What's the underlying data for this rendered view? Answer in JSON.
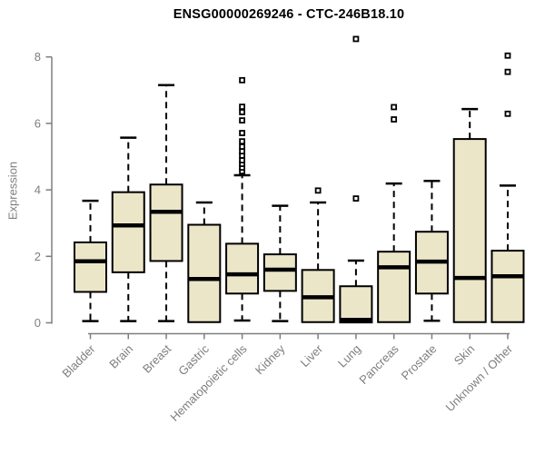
{
  "figure": {
    "title": "ENSG00000269246 - CTC-246B18.10",
    "ylabel": "Expression"
  },
  "colors": {
    "background": "#FFFFFF",
    "box_fill": "#ECE6C9",
    "box_stroke": "#000000",
    "median": "#000000",
    "whisker": "#000000",
    "outlier_stroke": "#000000",
    "axis": "#7E7E7E",
    "title_text": "#000000"
  },
  "chart_data": {
    "type": "boxplot",
    "title": "ENSG00000269246 - CTC-246B18.10",
    "xlabel": "",
    "ylabel": "Expression",
    "ylim": [
      0,
      8.6
    ],
    "yticks": [
      0,
      2,
      4,
      6,
      8
    ],
    "grid": false,
    "legend": false,
    "categories": [
      "Bladder",
      "Brain",
      "Breast",
      "Gastric",
      "Hematopoietic cells",
      "Kidney",
      "Liver",
      "Lung",
      "Pancreas",
      "Prostate",
      "Skin",
      "Unknown / Other"
    ],
    "boxes": [
      {
        "category": "Bladder",
        "whisker_low": 0.05,
        "q1": 0.93,
        "median": 1.85,
        "q3": 2.42,
        "whisker_high": 3.67,
        "outliers": []
      },
      {
        "category": "Brain",
        "whisker_low": 0.05,
        "q1": 1.52,
        "median": 2.93,
        "q3": 3.93,
        "whisker_high": 5.57,
        "outliers": []
      },
      {
        "category": "Breast",
        "whisker_low": 0.05,
        "q1": 1.86,
        "median": 3.34,
        "q3": 4.16,
        "whisker_high": 7.15,
        "outliers": []
      },
      {
        "category": "Gastric",
        "whisker_low": 0.02,
        "q1": 0.02,
        "median": 1.32,
        "q3": 2.95,
        "whisker_high": 3.62,
        "outliers": []
      },
      {
        "category": "Hematopoietic cells",
        "whisker_low": 0.07,
        "q1": 0.88,
        "median": 1.46,
        "q3": 2.38,
        "whisker_high": 4.44,
        "outliers": [
          4.56,
          4.67,
          4.78,
          4.89,
          5.03,
          5.16,
          5.3,
          5.46,
          5.71,
          6.09,
          6.34,
          6.5,
          7.3
        ]
      },
      {
        "category": "Kidney",
        "whisker_low": 0.05,
        "q1": 0.96,
        "median": 1.6,
        "q3": 2.06,
        "whisker_high": 3.52,
        "outliers": []
      },
      {
        "category": "Liver",
        "whisker_low": 0.02,
        "q1": 0.02,
        "median": 0.77,
        "q3": 1.59,
        "whisker_high": 3.62,
        "outliers": [
          3.98
        ]
      },
      {
        "category": "Lung",
        "whisker_low": 0.01,
        "q1": 0.01,
        "median": 0.09,
        "q3": 1.1,
        "whisker_high": 1.87,
        "outliers": [
          3.74,
          8.54
        ]
      },
      {
        "category": "Pancreas",
        "whisker_low": 0.02,
        "q1": 0.02,
        "median": 1.67,
        "q3": 2.14,
        "whisker_high": 4.19,
        "outliers": [
          6.12,
          6.49
        ]
      },
      {
        "category": "Prostate",
        "whisker_low": 0.06,
        "q1": 0.88,
        "median": 1.84,
        "q3": 2.74,
        "whisker_high": 4.27,
        "outliers": []
      },
      {
        "category": "Skin",
        "whisker_low": 0.02,
        "q1": 0.02,
        "median": 1.35,
        "q3": 5.53,
        "whisker_high": 6.43,
        "outliers": []
      },
      {
        "category": "Unknown / Other",
        "whisker_low": 0.02,
        "q1": 0.02,
        "median": 1.4,
        "q3": 2.17,
        "whisker_high": 4.13,
        "outliers": [
          6.29,
          7.55,
          8.04
        ]
      }
    ]
  }
}
